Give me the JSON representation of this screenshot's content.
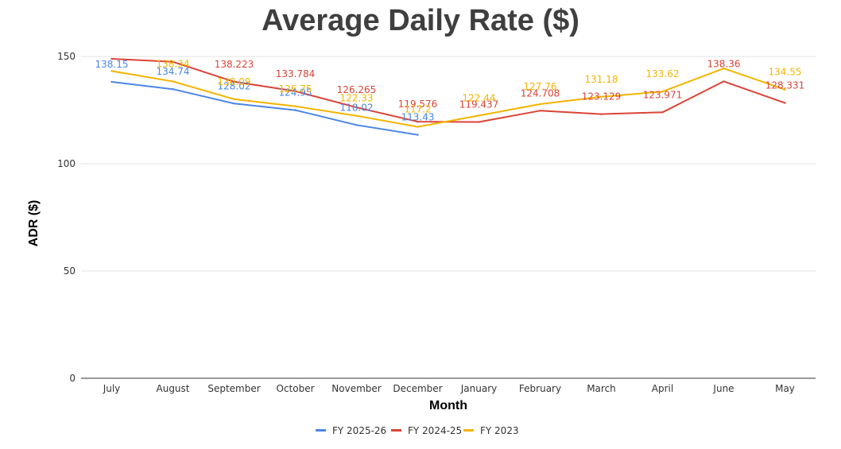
{
  "chart_data": {
    "type": "line",
    "title": "Average Daily Rate ($)",
    "xlabel": "Month",
    "ylabel": "ADR ($)",
    "categories": [
      "July",
      "August",
      "September",
      "October",
      "November",
      "December",
      "January",
      "February",
      "March",
      "April",
      "June",
      "May"
    ],
    "ylim": [
      0,
      150
    ],
    "yticks": [
      0,
      50,
      100,
      150
    ],
    "grid": true,
    "legend": "bottom",
    "series": [
      {
        "name": "FY 2025-26",
        "color": "#4a86e8",
        "values": [
          138.15,
          134.74,
          128.02,
          124.95,
          118.02,
          113.43,
          null,
          null,
          null,
          null,
          null,
          null
        ],
        "labels": [
          "138.15",
          "134.74",
          "128.02",
          "124.95",
          "118.02",
          "113.43",
          null,
          null,
          null,
          null,
          null,
          null
        ]
      },
      {
        "name": "FY 2024-25",
        "color": "#db4437",
        "values": [
          148.9,
          147.5,
          138.223,
          133.784,
          126.265,
          119.576,
          119.437,
          124.708,
          123.129,
          123.971,
          138.36,
          128.331
        ],
        "labels": [
          null,
          null,
          "138.223",
          "133.784",
          "126.265",
          "119.576",
          "119.437",
          "124.708",
          "123.129",
          "123.971",
          "138.36",
          "128.331"
        ]
      },
      {
        "name": "FY 2023",
        "color": "#f4b400",
        "values": [
          143.2,
          138.34,
          130.09,
          126.75,
          122.33,
          117.2,
          122.44,
          127.76,
          131.18,
          133.62,
          144.4,
          134.55
        ],
        "labels": [
          null,
          "138.34",
          "130.09",
          "126.75",
          "122.33",
          "117.2",
          "122.44",
          "127.76",
          "131.18",
          "133.62",
          null,
          "134.55"
        ]
      }
    ]
  }
}
